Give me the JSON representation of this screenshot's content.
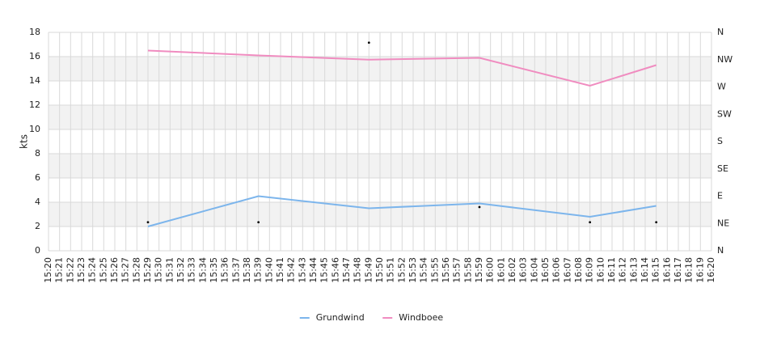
{
  "chart_data": {
    "type": "line",
    "y_label": "kts",
    "categories": [
      "15:20",
      "15:21",
      "15:22",
      "15:23",
      "15:24",
      "15:25",
      "15:26",
      "15:27",
      "15:28",
      "15:29",
      "15:30",
      "15:31",
      "15:32",
      "15:33",
      "15:34",
      "15:35",
      "15:36",
      "15:37",
      "15:38",
      "15:39",
      "15:40",
      "15:41",
      "15:42",
      "15:43",
      "15:44",
      "15:45",
      "15:46",
      "15:47",
      "15:48",
      "15:49",
      "15:50",
      "15:51",
      "15:52",
      "15:53",
      "15:54",
      "15:55",
      "15:56",
      "15:57",
      "15:58",
      "15:59",
      "16:00",
      "16:01",
      "16:02",
      "16:03",
      "16:04",
      "16:05",
      "16:06",
      "16:07",
      "16:08",
      "16:09",
      "16:10",
      "16:11",
      "16:12",
      "16:13",
      "16:14",
      "16:15",
      "16:16",
      "16:17",
      "16:18",
      "16:19",
      "16:20"
    ],
    "series": [
      {
        "name": "Grundwind",
        "color": "#7cb5ec",
        "x": [
          "15:29",
          "15:39",
          "15:49",
          "15:59",
          "16:09",
          "16:15"
        ],
        "values": [
          2.0,
          4.5,
          3.5,
          3.9,
          2.8,
          3.7
        ]
      },
      {
        "name": "Windboee",
        "color": "#f08cc0",
        "x": [
          "15:29",
          "15:39",
          "15:49",
          "15:59",
          "16:09",
          "16:15"
        ],
        "values": [
          16.5,
          16.1,
          15.75,
          15.9,
          13.6,
          15.3
        ]
      },
      {
        "color": "#000000",
        "axis": "y2",
        "marker": "dot",
        "x": [
          "15:29",
          "15:39",
          "15:49",
          "15:59",
          "16:09",
          "16:15"
        ],
        "values": [
          47,
          47,
          343,
          72,
          47,
          47
        ]
      }
    ],
    "ylim": [
      0,
      18
    ],
    "yticks": [
      0,
      2,
      4,
      6,
      8,
      10,
      12,
      14,
      16,
      18
    ],
    "y2lim": [
      0,
      360
    ],
    "y2ticks": [
      {
        "value": 0,
        "label": "N"
      },
      {
        "value": 45,
        "label": "NE"
      },
      {
        "value": 90,
        "label": "E"
      },
      {
        "value": 135,
        "label": "SE"
      },
      {
        "value": 180,
        "label": "S"
      },
      {
        "value": 225,
        "label": "SW"
      },
      {
        "value": 270,
        "label": "W"
      },
      {
        "value": 315,
        "label": "NW"
      },
      {
        "value": 360,
        "label": "N"
      }
    ],
    "grid": true,
    "legend": "bottom"
  }
}
